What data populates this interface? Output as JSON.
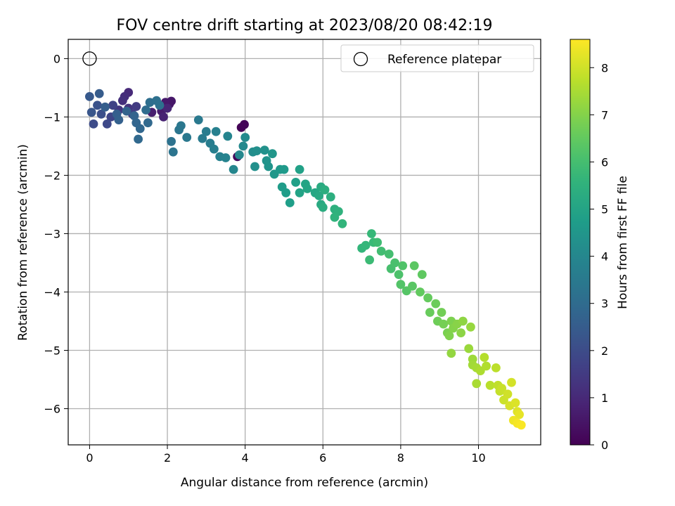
{
  "chart_data": {
    "type": "scatter",
    "title": "FOV centre drift starting at 2023/08/20 08:42:19",
    "xlabel": "Angular distance from reference (arcmin)",
    "ylabel": "Rotation from reference (arcmin)",
    "colorbar_label": "Hours from first FF file",
    "colormap": "viridis",
    "xlim": [
      -0.55,
      11.6
    ],
    "ylim": [
      -6.62,
      0.33
    ],
    "clim": [
      0,
      8.6
    ],
    "x_ticks": [
      "0",
      "2",
      "4",
      "6",
      "8",
      "10"
    ],
    "y_ticks": [
      "0",
      "−1",
      "−2",
      "−3",
      "−4",
      "−5",
      "−6"
    ],
    "colorbar_ticks": [
      "0",
      "1",
      "2",
      "3",
      "4",
      "5",
      "6",
      "7",
      "8"
    ],
    "grid": true,
    "legend": {
      "placement": "top-right",
      "entries": [
        {
          "label": "Reference platepar",
          "marker": "open-circle"
        }
      ]
    },
    "reference_point": {
      "x": 0,
      "y": 0
    },
    "points": [
      [
        3.9,
        -1.18,
        0.05
      ],
      [
        3.98,
        -1.13,
        0.1
      ],
      [
        3.8,
        -1.68,
        0.2
      ],
      [
        2.05,
        -0.78,
        0.5
      ],
      [
        2.1,
        -0.73,
        0.55
      ],
      [
        1.95,
        -0.75,
        0.6
      ],
      [
        1.85,
        -0.9,
        0.65
      ],
      [
        1.6,
        -0.92,
        0.7
      ],
      [
        1.9,
        -1.0,
        0.8
      ],
      [
        2.0,
        -0.85,
        0.9
      ],
      [
        1.0,
        -0.58,
        1.0
      ],
      [
        0.9,
        -0.65,
        1.1
      ],
      [
        0.85,
        -0.72,
        1.2
      ],
      [
        1.0,
        -0.85,
        1.3
      ],
      [
        0.75,
        -0.88,
        1.4
      ],
      [
        1.2,
        -0.82,
        1.5
      ],
      [
        1.1,
        -0.95,
        1.6
      ],
      [
        0.6,
        -0.8,
        1.7
      ],
      [
        0.55,
        -1.0,
        1.8
      ],
      [
        0.45,
        -1.12,
        1.9
      ],
      [
        0.1,
        -1.12,
        2.0
      ],
      [
        0.3,
        -0.95,
        2.1
      ],
      [
        0.2,
        -0.8,
        2.2
      ],
      [
        0.05,
        -0.92,
        2.3
      ],
      [
        0.0,
        -0.65,
        2.4
      ],
      [
        0.25,
        -0.6,
        2.5
      ],
      [
        0.4,
        -0.83,
        2.55
      ],
      [
        0.7,
        -0.95,
        2.6
      ],
      [
        0.75,
        -1.05,
        2.65
      ],
      [
        0.95,
        -0.9,
        2.7
      ],
      [
        1.15,
        -0.98,
        2.75
      ],
      [
        1.2,
        -1.1,
        2.8
      ],
      [
        1.3,
        -1.2,
        2.85
      ],
      [
        1.5,
        -1.1,
        2.9
      ],
      [
        1.25,
        -1.38,
        2.9
      ],
      [
        1.45,
        -0.88,
        3.0
      ],
      [
        1.55,
        -0.75,
        3.1
      ],
      [
        1.72,
        -0.72,
        3.15
      ],
      [
        1.8,
        -0.8,
        3.2
      ],
      [
        2.1,
        -1.42,
        3.25
      ],
      [
        2.15,
        -1.6,
        3.3
      ],
      [
        2.3,
        -1.22,
        3.35
      ],
      [
        2.35,
        -1.15,
        3.4
      ],
      [
        2.5,
        -1.35,
        3.45
      ],
      [
        2.8,
        -1.05,
        3.5
      ],
      [
        2.9,
        -1.37,
        3.55
      ],
      [
        3.0,
        -1.25,
        3.6
      ],
      [
        3.1,
        -1.45,
        3.65
      ],
      [
        3.2,
        -1.55,
        3.7
      ],
      [
        3.25,
        -1.25,
        3.75
      ],
      [
        3.35,
        -1.68,
        3.8
      ],
      [
        3.5,
        -1.7,
        3.85
      ],
      [
        3.55,
        -1.33,
        3.9
      ],
      [
        3.7,
        -1.9,
        3.95
      ],
      [
        3.85,
        -1.65,
        4.0
      ],
      [
        3.95,
        -1.5,
        4.05
      ],
      [
        4.0,
        -1.35,
        4.1
      ],
      [
        4.2,
        -1.6,
        4.2
      ],
      [
        4.3,
        -1.58,
        4.25
      ],
      [
        4.25,
        -1.85,
        4.3
      ],
      [
        4.5,
        -1.57,
        4.35
      ],
      [
        4.55,
        -1.75,
        4.4
      ],
      [
        4.6,
        -1.85,
        4.45
      ],
      [
        4.7,
        -1.63,
        4.5
      ],
      [
        4.75,
        -1.98,
        4.55
      ],
      [
        4.9,
        -1.9,
        4.6
      ],
      [
        5.0,
        -1.9,
        4.65
      ],
      [
        4.95,
        -2.2,
        4.7
      ],
      [
        5.05,
        -2.3,
        4.75
      ],
      [
        5.15,
        -2.47,
        4.8
      ],
      [
        5.3,
        -2.12,
        4.85
      ],
      [
        5.4,
        -1.9,
        4.9
      ],
      [
        5.4,
        -2.3,
        4.95
      ],
      [
        5.55,
        -2.15,
        5.0
      ],
      [
        5.6,
        -2.23,
        5.05
      ],
      [
        5.8,
        -2.3,
        5.1
      ],
      [
        5.9,
        -2.35,
        5.15
      ],
      [
        5.95,
        -2.5,
        5.2
      ],
      [
        5.95,
        -2.2,
        5.25
      ],
      [
        6.0,
        -2.55,
        5.3
      ],
      [
        6.05,
        -2.25,
        5.35
      ],
      [
        6.2,
        -2.37,
        5.4
      ],
      [
        6.3,
        -2.58,
        5.45
      ],
      [
        6.4,
        -2.62,
        5.5
      ],
      [
        6.3,
        -2.72,
        5.55
      ],
      [
        6.5,
        -2.83,
        5.6
      ],
      [
        7.0,
        -3.25,
        5.65
      ],
      [
        7.1,
        -3.2,
        5.7
      ],
      [
        7.25,
        -3.0,
        5.75
      ],
      [
        7.3,
        -3.15,
        5.8
      ],
      [
        7.2,
        -3.45,
        5.85
      ],
      [
        7.4,
        -3.15,
        5.9
      ],
      [
        7.5,
        -3.3,
        5.95
      ],
      [
        7.7,
        -3.35,
        6.0
      ],
      [
        7.75,
        -3.6,
        6.05
      ],
      [
        7.85,
        -3.5,
        6.1
      ],
      [
        7.95,
        -3.7,
        6.15
      ],
      [
        8.05,
        -3.55,
        6.2
      ],
      [
        8.0,
        -3.87,
        6.25
      ],
      [
        8.15,
        -3.98,
        6.3
      ],
      [
        8.3,
        -3.9,
        6.35
      ],
      [
        8.35,
        -3.55,
        6.4
      ],
      [
        8.55,
        -3.7,
        6.45
      ],
      [
        8.5,
        -4.0,
        6.5
      ],
      [
        8.7,
        -4.1,
        6.55
      ],
      [
        8.75,
        -4.35,
        6.6
      ],
      [
        8.9,
        -4.2,
        6.65
      ],
      [
        8.95,
        -4.5,
        6.7
      ],
      [
        9.05,
        -4.35,
        6.75
      ],
      [
        9.1,
        -4.55,
        6.8
      ],
      [
        9.2,
        -4.7,
        6.85
      ],
      [
        9.3,
        -4.5,
        6.9
      ],
      [
        9.25,
        -4.75,
        6.95
      ],
      [
        9.35,
        -4.62,
        7.0
      ],
      [
        9.45,
        -4.55,
        7.05
      ],
      [
        9.55,
        -4.7,
        7.1
      ],
      [
        9.6,
        -4.5,
        7.15
      ],
      [
        9.3,
        -5.05,
        7.2
      ],
      [
        9.8,
        -4.6,
        7.25
      ],
      [
        9.75,
        -4.97,
        7.3
      ],
      [
        9.85,
        -5.15,
        7.35
      ],
      [
        9.85,
        -5.25,
        7.4
      ],
      [
        9.95,
        -5.3,
        7.45
      ],
      [
        9.95,
        -5.57,
        7.5
      ],
      [
        10.05,
        -5.35,
        7.55
      ],
      [
        10.2,
        -5.27,
        7.6
      ],
      [
        10.15,
        -5.12,
        7.65
      ],
      [
        10.3,
        -5.6,
        7.7
      ],
      [
        10.45,
        -5.3,
        7.75
      ],
      [
        10.5,
        -5.6,
        7.8
      ],
      [
        10.55,
        -5.7,
        7.85
      ],
      [
        10.6,
        -5.65,
        7.9
      ],
      [
        10.65,
        -5.85,
        7.95
      ],
      [
        10.75,
        -5.75,
        8.0
      ],
      [
        10.85,
        -5.55,
        8.05
      ],
      [
        10.8,
        -5.95,
        8.1
      ],
      [
        10.95,
        -5.9,
        8.15
      ],
      [
        11.0,
        -6.05,
        8.2
      ],
      [
        11.05,
        -6.1,
        8.3
      ],
      [
        10.9,
        -6.2,
        8.4
      ],
      [
        11.0,
        -6.25,
        8.5
      ],
      [
        11.1,
        -6.28,
        8.55
      ]
    ]
  }
}
